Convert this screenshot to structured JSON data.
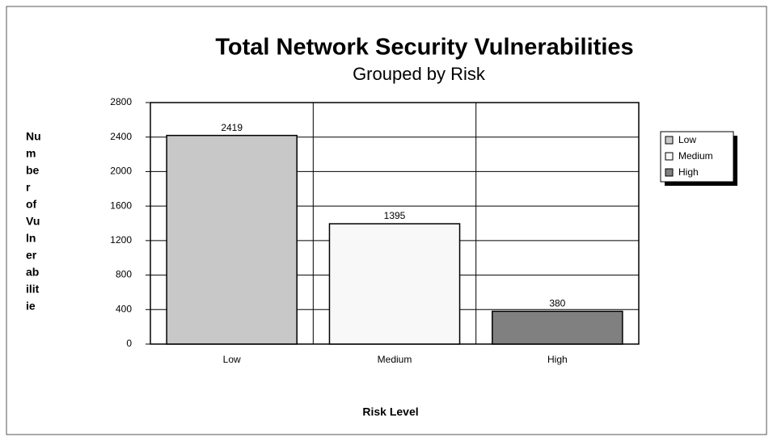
{
  "chart_data": {
    "type": "bar",
    "title": "Total Network Security Vulnerabilities",
    "subtitle": "Grouped by Risk",
    "x_label": "Risk Level",
    "y_label_lines": [
      "Nu",
      "m",
      "be",
      "r",
      "of",
      "Vu",
      "ln",
      "er",
      "ab",
      "ilit",
      "ie"
    ],
    "categories": [
      "Low",
      "Medium",
      "High"
    ],
    "values": [
      2419,
      1395,
      380
    ],
    "colors": [
      "#c8c8c8",
      "#f8f8f8",
      "#808080"
    ],
    "ylim": [
      0,
      2800
    ],
    "yticks": [
      0,
      400,
      800,
      1200,
      1600,
      2000,
      2400,
      2800
    ],
    "grid": true,
    "legend": "right"
  }
}
